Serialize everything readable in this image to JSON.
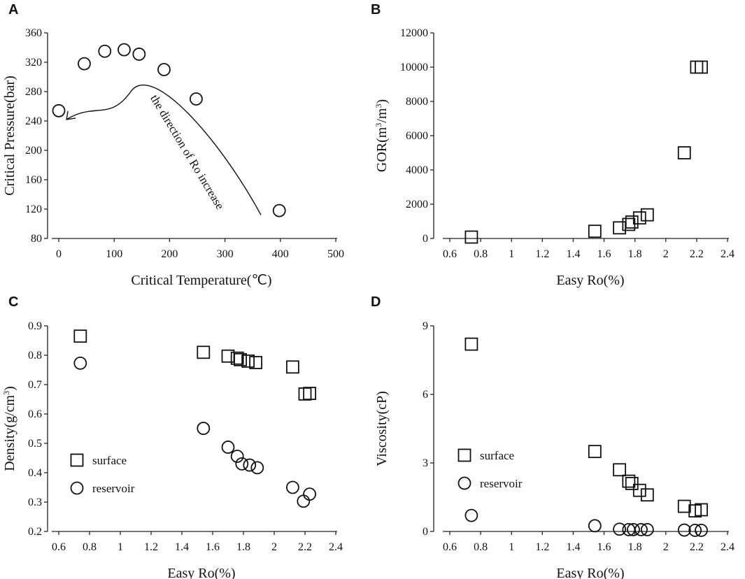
{
  "chart_data": [
    {
      "panel": "A",
      "type": "scatter",
      "xlabel": "Critical Temperature(℃)",
      "ylabel": "Critical Pressure(bar)",
      "xlim": [
        0,
        500
      ],
      "ylim": [
        80,
        360
      ],
      "xticks": [
        0,
        100,
        200,
        300,
        400,
        500
      ],
      "yticks": [
        80,
        120,
        160,
        200,
        240,
        280,
        320,
        360
      ],
      "series": [
        {
          "name": "critical points",
          "marker": "circle",
          "x": [
            0,
            46,
            83,
            118,
            145,
            190,
            248,
            398
          ],
          "y": [
            254,
            318,
            335,
            337,
            331,
            310,
            270,
            118
          ]
        }
      ],
      "annotation": {
        "text": "the direction of Ro increase",
        "arrow": "curved, from (365, 112) through (130, 280) to (15, 240)"
      }
    },
    {
      "panel": "B",
      "type": "scatter",
      "xlabel": "Easy Ro(%)",
      "ylabel": "GOR(m³/m³)",
      "ylabel_parts": [
        "GOR(m",
        "3",
        "/m",
        "3",
        ")"
      ],
      "xlim": [
        0.5,
        2.4
      ],
      "ylim": [
        0,
        12000
      ],
      "xticks": [
        "0.6",
        "0.8",
        "1",
        "1.2",
        "1.4",
        "1.6",
        "1.8",
        "2",
        "2.2",
        "2.4"
      ],
      "yticks": [
        "0",
        "2000",
        "4000",
        "6000",
        "8000",
        "10000",
        "12000"
      ],
      "series": [
        {
          "name": "GOR",
          "marker": "square",
          "x": [
            0.74,
            1.54,
            1.7,
            1.76,
            1.78,
            1.83,
            1.88,
            2.12,
            2.2,
            2.23
          ],
          "y": [
            80,
            420,
            620,
            820,
            960,
            1200,
            1380,
            5000,
            10000,
            10000
          ]
        }
      ]
    },
    {
      "panel": "C",
      "type": "scatter",
      "xlabel": "Easy Ro(%)",
      "ylabel": "Density(g/cm³)",
      "ylabel_parts": [
        "Density(g/cm",
        "3",
        ")"
      ],
      "xlim": [
        0.5,
        2.4
      ],
      "ylim": [
        0.2,
        0.9
      ],
      "xticks": [
        "0.6",
        "0.8",
        "1",
        "1.2",
        "1.4",
        "1.6",
        "1.8",
        "2",
        "2.2",
        "2.4"
      ],
      "yticks": [
        "0.2",
        "0.3",
        "0.4",
        "0.5",
        "0.6",
        "0.7",
        "0.8",
        "0.9"
      ],
      "legend": [
        "surface",
        "reservoir"
      ],
      "series": [
        {
          "name": "surface",
          "marker": "square",
          "x": [
            0.74,
            1.54,
            1.7,
            1.76,
            1.78,
            1.83,
            1.88,
            2.12,
            2.2,
            2.23
          ],
          "y": [
            0.865,
            0.81,
            0.797,
            0.79,
            0.785,
            0.78,
            0.775,
            0.76,
            0.668,
            0.67
          ]
        },
        {
          "name": "reservoir",
          "marker": "circle",
          "x": [
            0.74,
            1.54,
            1.7,
            1.76,
            1.79,
            1.84,
            1.89,
            2.12,
            2.19,
            2.23
          ],
          "y": [
            0.773,
            0.551,
            0.487,
            0.456,
            0.43,
            0.426,
            0.417,
            0.35,
            0.303,
            0.327
          ]
        }
      ]
    },
    {
      "panel": "D",
      "type": "scatter",
      "xlabel": "Easy Ro(%)",
      "ylabel": "Viscosity(cP)",
      "xlim": [
        0.5,
        2.4
      ],
      "ylim": [
        0,
        9
      ],
      "xticks": [
        "0.6",
        "0.8",
        "1",
        "1.2",
        "1.4",
        "1.6",
        "1.8",
        "2",
        "2.2",
        "2.4"
      ],
      "yticks": [
        "0",
        "3",
        "6",
        "9"
      ],
      "legend": [
        "surface",
        "reservoir"
      ],
      "series": [
        {
          "name": "surface",
          "marker": "square",
          "x": [
            0.74,
            1.54,
            1.7,
            1.76,
            1.78,
            1.83,
            1.88,
            2.12,
            2.19,
            2.23
          ],
          "y": [
            8.2,
            3.5,
            2.7,
            2.2,
            2.1,
            1.8,
            1.6,
            1.1,
            0.9,
            0.95
          ]
        },
        {
          "name": "reservoir",
          "marker": "circle",
          "x": [
            0.74,
            1.54,
            1.7,
            1.76,
            1.79,
            1.84,
            1.88,
            2.12,
            2.19,
            2.23
          ],
          "y": [
            0.7,
            0.25,
            0.1,
            0.08,
            0.08,
            0.08,
            0.08,
            0.06,
            0.05,
            0.05
          ]
        }
      ]
    }
  ],
  "panels": {
    "a": {
      "label": "A"
    },
    "b": {
      "label": "B"
    },
    "c": {
      "label": "C"
    },
    "d": {
      "label": "D"
    }
  },
  "legend": {
    "surface": "surface",
    "reservoir": "reservoir"
  }
}
